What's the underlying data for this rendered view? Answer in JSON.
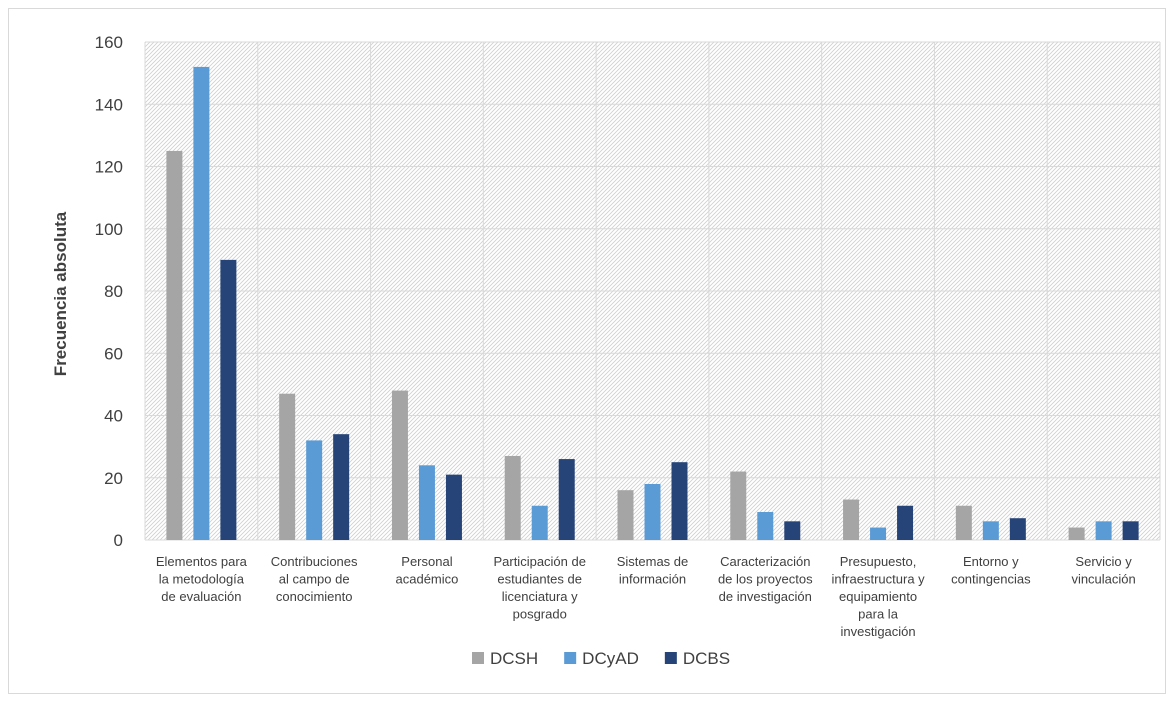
{
  "chart_data": {
    "type": "bar",
    "ylabel": "Frecuencia absoluta",
    "ylim": [
      0,
      160
    ],
    "yticks": [
      "0",
      "20",
      "40",
      "60",
      "80",
      "100",
      "120",
      "140",
      "160"
    ],
    "grid": true,
    "legend_position": "bottom",
    "categories": [
      [
        "Elementos para",
        "la metodología",
        "de evaluación"
      ],
      [
        "Contribuciones",
        "al campo de",
        "conocimiento"
      ],
      [
        "Personal",
        "académico"
      ],
      [
        "Participación de",
        "estudiantes de",
        "licenciatura y",
        "posgrado"
      ],
      [
        "Sistemas de",
        "información"
      ],
      [
        "Caracterización",
        "de los proyectos",
        "de investigación"
      ],
      [
        "Presupuesto,",
        "infraestructura y",
        "equipamiento",
        "para la",
        "investigación"
      ],
      [
        "Entorno y",
        "contingencias"
      ],
      [
        "Servicio y",
        "vinculación"
      ]
    ],
    "series": [
      {
        "name": "DCSH",
        "color": "#a5a5a5",
        "values": [
          125,
          47,
          48,
          27,
          16,
          22,
          13,
          11,
          4
        ]
      },
      {
        "name": "DCyAD",
        "color": "#5b9bd5",
        "values": [
          152,
          32,
          24,
          11,
          18,
          9,
          4,
          6,
          6
        ]
      },
      {
        "name": "DCBS",
        "color": "#264478",
        "values": [
          90,
          34,
          21,
          26,
          25,
          6,
          11,
          7,
          6
        ]
      }
    ]
  }
}
